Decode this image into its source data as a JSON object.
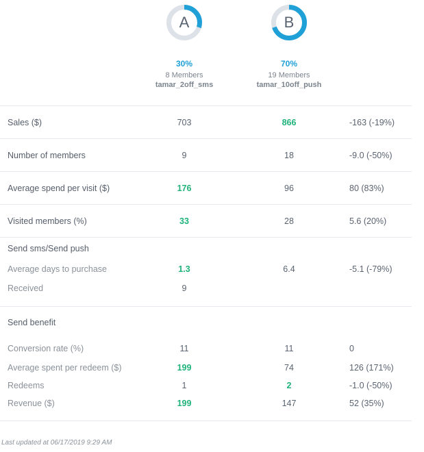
{
  "variants": [
    {
      "letter": "A",
      "percent_text": "30%",
      "fraction": 0.3,
      "members": "8 Members",
      "campaign": "tamar_2off_sms"
    },
    {
      "letter": "B",
      "percent_text": "70%",
      "fraction": 0.7,
      "members": "19 Members",
      "campaign": "tamar_10off_push"
    }
  ],
  "colors": {
    "accent": "#1fa0d6",
    "ring_track": "#dde2e8",
    "winner": "#1fb37a"
  },
  "metrics": [
    {
      "label": "Sales ($)",
      "a": "703",
      "b": "866",
      "diff": "-163 (-19%)",
      "winner": "b"
    },
    {
      "label": "Number of members",
      "a": "9",
      "b": "18",
      "diff": "-9.0 (-50%)",
      "winner": ""
    },
    {
      "label": "Average spend per visit ($)",
      "a": "176",
      "b": "96",
      "diff": "80 (83%)",
      "winner": "a"
    },
    {
      "label": "Visited members (%)",
      "a": "33",
      "b": "28",
      "diff": "5.6 (20%)",
      "winner": "a"
    }
  ],
  "send_section": {
    "title": "Send sms/Send push",
    "rows": [
      {
        "label": "Average days to purchase",
        "a": "1.3",
        "b": "6.4",
        "diff": "-5.1 (-79%)",
        "winner": "a"
      },
      {
        "label": "Received",
        "a": "9",
        "b": "",
        "diff": "",
        "winner": ""
      }
    ]
  },
  "benefit_section": {
    "title": "Send benefit",
    "rows": [
      {
        "label": "Conversion rate (%)",
        "a": "11",
        "b": "11",
        "diff": "0",
        "winner": ""
      },
      {
        "label": "Average spent per redeem ($)",
        "a": "199",
        "b": "74",
        "diff": "126 (171%)",
        "winner": "a"
      },
      {
        "label": "Redeems",
        "a": "1",
        "b": "2",
        "diff": "-1.0 (-50%)",
        "winner": "b"
      },
      {
        "label": "Revenue ($)",
        "a": "199",
        "b": "147",
        "diff": "52 (35%)",
        "winner": "a"
      }
    ]
  },
  "footer": {
    "last_updated": "Last updated at 06/17/2019 9:29 AM"
  }
}
